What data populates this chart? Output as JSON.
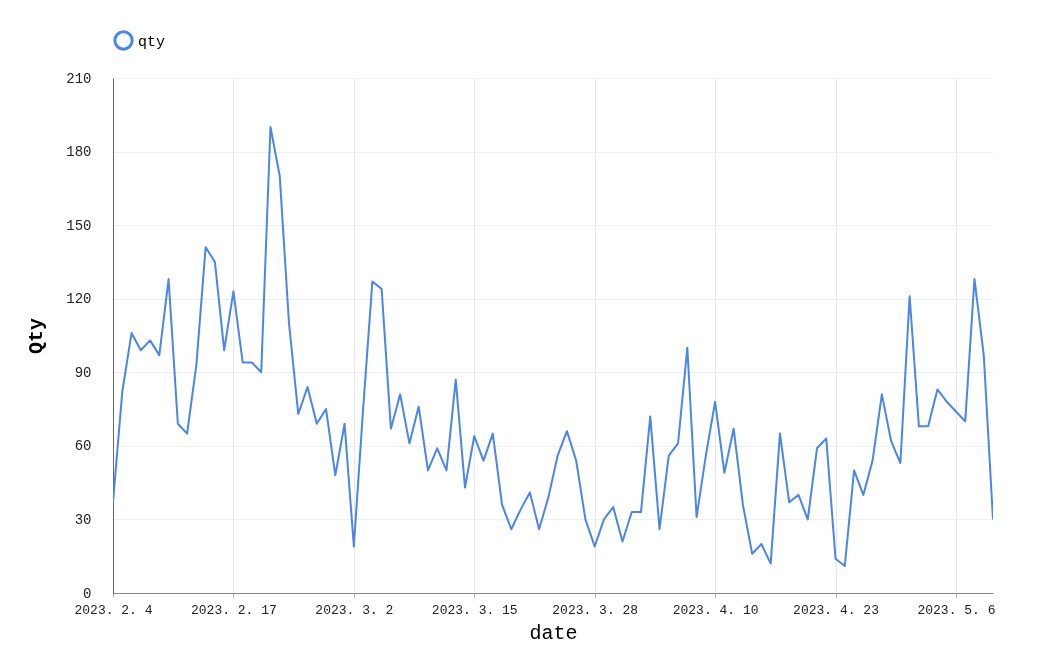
{
  "chart_data": {
    "type": "line",
    "xlabel": "date",
    "ylabel": "Qty",
    "legend": "top",
    "grid": true,
    "x": [
      "2023-02-04",
      "2023-02-05",
      "2023-02-06",
      "2023-02-07",
      "2023-02-08",
      "2023-02-09",
      "2023-02-10",
      "2023-02-11",
      "2023-02-12",
      "2023-02-13",
      "2023-02-14",
      "2023-02-15",
      "2023-02-16",
      "2023-02-17",
      "2023-02-18",
      "2023-02-19",
      "2023-02-20",
      "2023-02-21",
      "2023-02-22",
      "2023-02-23",
      "2023-02-24",
      "2023-02-25",
      "2023-02-26",
      "2023-02-27",
      "2023-02-28",
      "2023-03-01",
      "2023-03-02",
      "2023-03-03",
      "2023-03-04",
      "2023-03-05",
      "2023-03-06",
      "2023-03-07",
      "2023-03-08",
      "2023-03-09",
      "2023-03-10",
      "2023-03-11",
      "2023-03-12",
      "2023-03-13",
      "2023-03-14",
      "2023-03-15",
      "2023-03-16",
      "2023-03-17",
      "2023-03-18",
      "2023-03-19",
      "2023-03-20",
      "2023-03-21",
      "2023-03-22",
      "2023-03-23",
      "2023-03-24",
      "2023-03-25",
      "2023-03-26",
      "2023-03-27",
      "2023-03-28",
      "2023-03-29",
      "2023-03-30",
      "2023-03-31",
      "2023-04-01",
      "2023-04-02",
      "2023-04-03",
      "2023-04-04",
      "2023-04-05",
      "2023-04-06",
      "2023-04-07",
      "2023-04-08",
      "2023-04-09",
      "2023-04-10",
      "2023-04-11",
      "2023-04-12",
      "2023-04-13",
      "2023-04-14",
      "2023-04-15",
      "2023-04-16",
      "2023-04-17",
      "2023-04-18",
      "2023-04-19",
      "2023-04-20",
      "2023-04-21",
      "2023-04-22",
      "2023-04-23",
      "2023-04-24",
      "2023-04-25",
      "2023-04-26",
      "2023-04-27",
      "2023-04-28",
      "2023-04-29",
      "2023-04-30",
      "2023-05-01",
      "2023-05-02",
      "2023-05-03",
      "2023-05-04",
      "2023-05-05",
      "2023-05-06",
      "2023-05-07",
      "2023-05-08",
      "2023-05-09",
      "2023-05-10"
    ],
    "series": [
      {
        "name": "qty",
        "color": "#4a86e8",
        "values": [
          37,
          82,
          106,
          99,
          103,
          97,
          128,
          69,
          65,
          93,
          141,
          135,
          99,
          123,
          94,
          94,
          90,
          190,
          170,
          110,
          73,
          84,
          69,
          75,
          48,
          69,
          19,
          75,
          127,
          124,
          67,
          81,
          61,
          76,
          50,
          59,
          50,
          87,
          43,
          64,
          54,
          65,
          36,
          26,
          34,
          41,
          26,
          39,
          56,
          66,
          54,
          30,
          19,
          30,
          35,
          21,
          33,
          33,
          72,
          26,
          56,
          61,
          100,
          31,
          56,
          78,
          49,
          67,
          36,
          16,
          20,
          12,
          65,
          37,
          40,
          30,
          59,
          63,
          14,
          11,
          50,
          40,
          54,
          81,
          62,
          53,
          121,
          68,
          68,
          83,
          78,
          74,
          70,
          128,
          97,
          30
        ]
      }
    ],
    "xlim": [
      "2023-02-04",
      "2023-05-10"
    ],
    "xticks": [
      {
        "value": "2023-02-04",
        "label": "2023. 2. 4"
      },
      {
        "value": "2023-02-17",
        "label": "2023. 2. 17"
      },
      {
        "value": "2023-03-02",
        "label": "2023. 3. 2"
      },
      {
        "value": "2023-03-15",
        "label": "2023. 3. 15"
      },
      {
        "value": "2023-03-28",
        "label": "2023. 3. 28"
      },
      {
        "value": "2023-04-10",
        "label": "2023. 4. 10"
      },
      {
        "value": "2023-04-23",
        "label": "2023. 4. 23"
      },
      {
        "value": "2023-05-06",
        "label": "2023. 5. 6"
      }
    ],
    "ylim": [
      0,
      210
    ],
    "yticks": [
      0,
      30,
      60,
      90,
      120,
      150,
      180,
      210
    ]
  }
}
